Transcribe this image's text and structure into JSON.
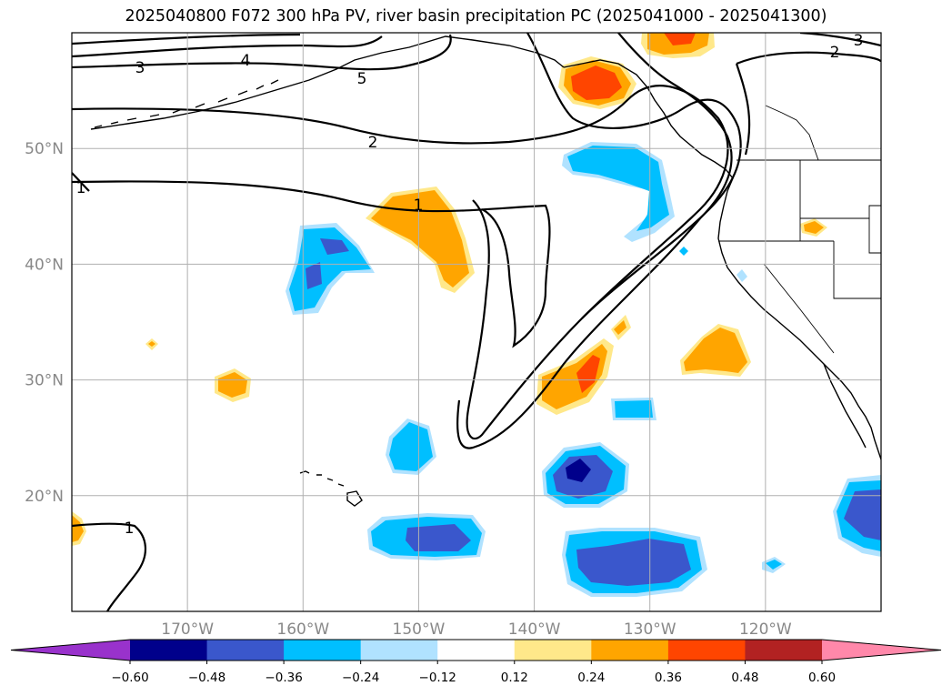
{
  "title": "2025040800 F072 300 hPa PV, river basin precipitation PC (2025041000 - 2025041300)",
  "map": {
    "projection": "PlateCarree",
    "lon_range": [
      -180,
      -110
    ],
    "lat_range": [
      10,
      60
    ],
    "gridlines": true,
    "lon_ticks": [
      {
        "value": -170,
        "label": "170°W"
      },
      {
        "value": -160,
        "label": "160°W"
      },
      {
        "value": -150,
        "label": "150°W"
      },
      {
        "value": -140,
        "label": "140°W"
      },
      {
        "value": -130,
        "label": "130°W"
      },
      {
        "value": -120,
        "label": "120°W"
      }
    ],
    "lat_ticks": [
      {
        "value": 50,
        "label": "50°N"
      },
      {
        "value": 40,
        "label": "40°N"
      },
      {
        "value": 30,
        "label": "30°N"
      },
      {
        "value": 20,
        "label": "20°N"
      }
    ],
    "contour_labels": [
      {
        "text": "3"
      },
      {
        "text": "4"
      },
      {
        "text": "5"
      },
      {
        "text": "2"
      },
      {
        "text": "1"
      },
      {
        "text": "1"
      },
      {
        "text": "3"
      },
      {
        "text": "2"
      },
      {
        "text": "1"
      }
    ]
  },
  "colorbar": {
    "levels": [
      {
        "label": "−0.60"
      },
      {
        "label": "−0.48"
      },
      {
        "label": "−0.36"
      },
      {
        "label": "−0.24"
      },
      {
        "label": "−0.12"
      },
      {
        "label": "0.12"
      },
      {
        "label": "0.24"
      },
      {
        "label": "0.36"
      },
      {
        "label": "0.48"
      },
      {
        "label": "0.60"
      }
    ],
    "colors": [
      "#9932cc",
      "#00008b",
      "#3a57cc",
      "#00bfff",
      "#b0e2ff",
      "#ffffff",
      "#ffe88a",
      "#ffa500",
      "#ff4500",
      "#b22222",
      "#ff88aa"
    ],
    "extend": "both"
  },
  "palette": {
    "neg_strong": "#00008b",
    "neg_mid": "#3a57cc",
    "neg": "#00bfff",
    "neg_light": "#b0e2ff",
    "pos_light": "#ffe88a",
    "pos": "#ffa500",
    "pos_mid": "#ff4500"
  }
}
